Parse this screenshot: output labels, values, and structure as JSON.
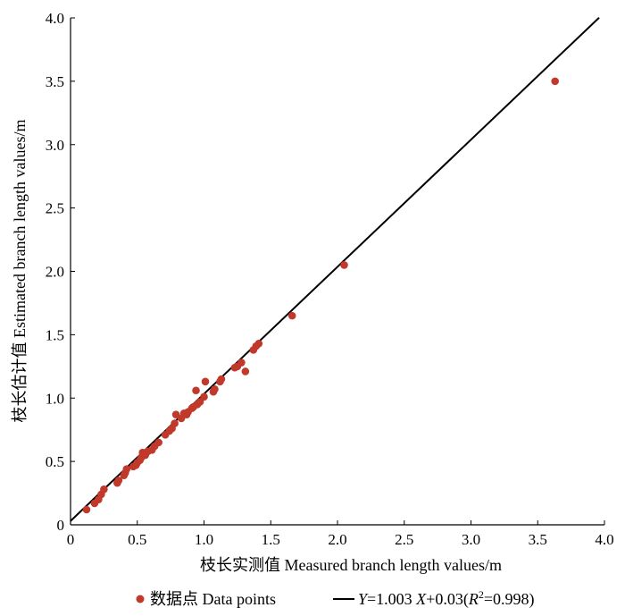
{
  "chart_data": {
    "type": "scatter",
    "xlabel": "枝长实测值  Measured branch length values/m",
    "ylabel": "枝长估计值  Estimated branch length values/m",
    "xlim": [
      0,
      4.0
    ],
    "ylim": [
      0,
      4.0
    ],
    "x_ticks": [
      "0",
      "0.5",
      "1.0",
      "1.5",
      "2.0",
      "2.5",
      "3.0",
      "3.5",
      "4.0"
    ],
    "y_ticks": [
      "0",
      "0.5",
      "1.0",
      "1.5",
      "2.0",
      "2.5",
      "3.0",
      "3.5",
      "4.0"
    ],
    "grid": false,
    "legend_position": "bottom",
    "series": [
      {
        "name": "数据点 Data points",
        "color": "#c0392b",
        "points": [
          [
            0.12,
            0.12
          ],
          [
            0.18,
            0.17
          ],
          [
            0.21,
            0.2
          ],
          [
            0.23,
            0.24
          ],
          [
            0.25,
            0.28
          ],
          [
            0.35,
            0.33
          ],
          [
            0.36,
            0.35
          ],
          [
            0.4,
            0.39
          ],
          [
            0.41,
            0.41
          ],
          [
            0.42,
            0.44
          ],
          [
            0.47,
            0.46
          ],
          [
            0.49,
            0.47
          ],
          [
            0.5,
            0.49
          ],
          [
            0.52,
            0.51
          ],
          [
            0.53,
            0.53
          ],
          [
            0.54,
            0.57
          ],
          [
            0.56,
            0.55
          ],
          [
            0.58,
            0.58
          ],
          [
            0.61,
            0.59
          ],
          [
            0.63,
            0.62
          ],
          [
            0.66,
            0.65
          ],
          [
            0.71,
            0.71
          ],
          [
            0.74,
            0.74
          ],
          [
            0.76,
            0.76
          ],
          [
            0.78,
            0.8
          ],
          [
            0.79,
            0.87
          ],
          [
            0.83,
            0.84
          ],
          [
            0.85,
            0.88
          ],
          [
            0.87,
            0.87
          ],
          [
            0.88,
            0.89
          ],
          [
            0.91,
            0.92
          ],
          [
            0.92,
            0.93
          ],
          [
            0.94,
            1.06
          ],
          [
            0.95,
            0.95
          ],
          [
            0.97,
            0.97
          ],
          [
            1.0,
            1.01
          ],
          [
            1.01,
            1.13
          ],
          [
            1.07,
            1.05
          ],
          [
            1.08,
            1.07
          ],
          [
            1.12,
            1.13
          ],
          [
            1.13,
            1.15
          ],
          [
            1.23,
            1.24
          ],
          [
            1.25,
            1.25
          ],
          [
            1.28,
            1.28
          ],
          [
            1.31,
            1.21
          ],
          [
            1.37,
            1.38
          ],
          [
            1.39,
            1.41
          ],
          [
            1.41,
            1.43
          ],
          [
            1.66,
            1.65
          ],
          [
            2.05,
            2.05
          ],
          [
            3.63,
            3.5
          ]
        ]
      },
      {
        "name": "Y=1.003 X+0.03(R²=0.998)",
        "color": "#000000",
        "type": "line",
        "slope": 1.003,
        "intercept": 0.03,
        "x_range": [
          0,
          3.96
        ]
      }
    ]
  },
  "legend": {
    "points_label": "数据点 Data points",
    "line_label_y": "Y",
    "line_label_eq1": "=1.003 ",
    "line_label_x": "X",
    "line_label_eq2": "+0.03(",
    "line_label_r": "R",
    "line_label_sup": "2",
    "line_label_eq3": "=0.998)"
  }
}
